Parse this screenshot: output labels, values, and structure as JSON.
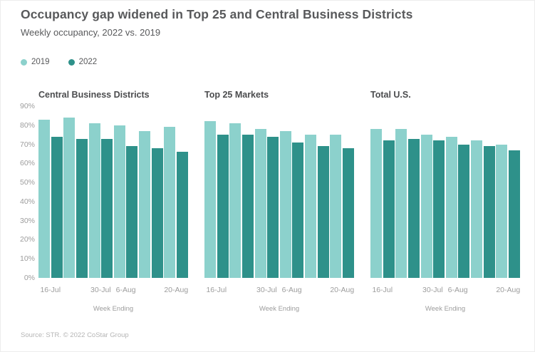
{
  "header": {
    "title": "Occupancy gap widened in Top 25 and Central Business Districts",
    "subtitle": "Weekly occupancy, 2022 vs. 2019"
  },
  "legend": {
    "items": [
      {
        "label": "2019",
        "color": "#8CD1CC"
      },
      {
        "label": "2022",
        "color": "#2E918A"
      }
    ]
  },
  "colors": {
    "series_2019": "#8CD1CC",
    "series_2022": "#2E918A",
    "title_text": "#58595b",
    "axis_text": "#9d9d9d"
  },
  "chart_data": [
    {
      "type": "bar",
      "title": "Central Business Districts",
      "n_groups": 6,
      "series": [
        {
          "name": "2019",
          "values": [
            83,
            84,
            81,
            80,
            77,
            79
          ]
        },
        {
          "name": "2022",
          "values": [
            74,
            73,
            73,
            69,
            68,
            66
          ]
        }
      ],
      "xticks": [
        {
          "label": "16-Jul",
          "group": 0
        },
        {
          "label": "30-Jul",
          "group": 2
        },
        {
          "label": "6-Aug",
          "group": 3
        },
        {
          "label": "20-Aug",
          "group": 5
        }
      ],
      "xlabel": "Week Ending",
      "ylim": [
        0,
        90
      ],
      "show_yaxis": true,
      "yticks": [
        "0%",
        "10%",
        "20%",
        "30%",
        "40%",
        "50%",
        "60%",
        "70%",
        "80%",
        "90%"
      ],
      "grid": false,
      "legend_position": "top-left"
    },
    {
      "type": "bar",
      "title": "Top 25 Markets",
      "n_groups": 6,
      "series": [
        {
          "name": "2019",
          "values": [
            82,
            81,
            78,
            77,
            75,
            75
          ]
        },
        {
          "name": "2022",
          "values": [
            75,
            75,
            74,
            71,
            69,
            68
          ]
        }
      ],
      "xticks": [
        {
          "label": "16-Jul",
          "group": 0
        },
        {
          "label": "30-Jul",
          "group": 2
        },
        {
          "label": "6-Aug",
          "group": 3
        },
        {
          "label": "20-Aug",
          "group": 5
        }
      ],
      "xlabel": "Week Ending",
      "ylim": [
        0,
        90
      ],
      "show_yaxis": false,
      "grid": false
    },
    {
      "type": "bar",
      "title": "Total U.S.",
      "n_groups": 6,
      "series": [
        {
          "name": "2019",
          "values": [
            78,
            78,
            75,
            74,
            72,
            70
          ]
        },
        {
          "name": "2022",
          "values": [
            72,
            73,
            72,
            70,
            69,
            67
          ]
        }
      ],
      "xticks": [
        {
          "label": "16-Jul",
          "group": 0
        },
        {
          "label": "30-Jul",
          "group": 2
        },
        {
          "label": "6-Aug",
          "group": 3
        },
        {
          "label": "20-Aug",
          "group": 5
        }
      ],
      "xlabel": "Week Ending",
      "ylim": [
        0,
        90
      ],
      "show_yaxis": false,
      "grid": false
    }
  ],
  "footer": {
    "source": "Source: STR. © 2022 CoStar Group"
  }
}
